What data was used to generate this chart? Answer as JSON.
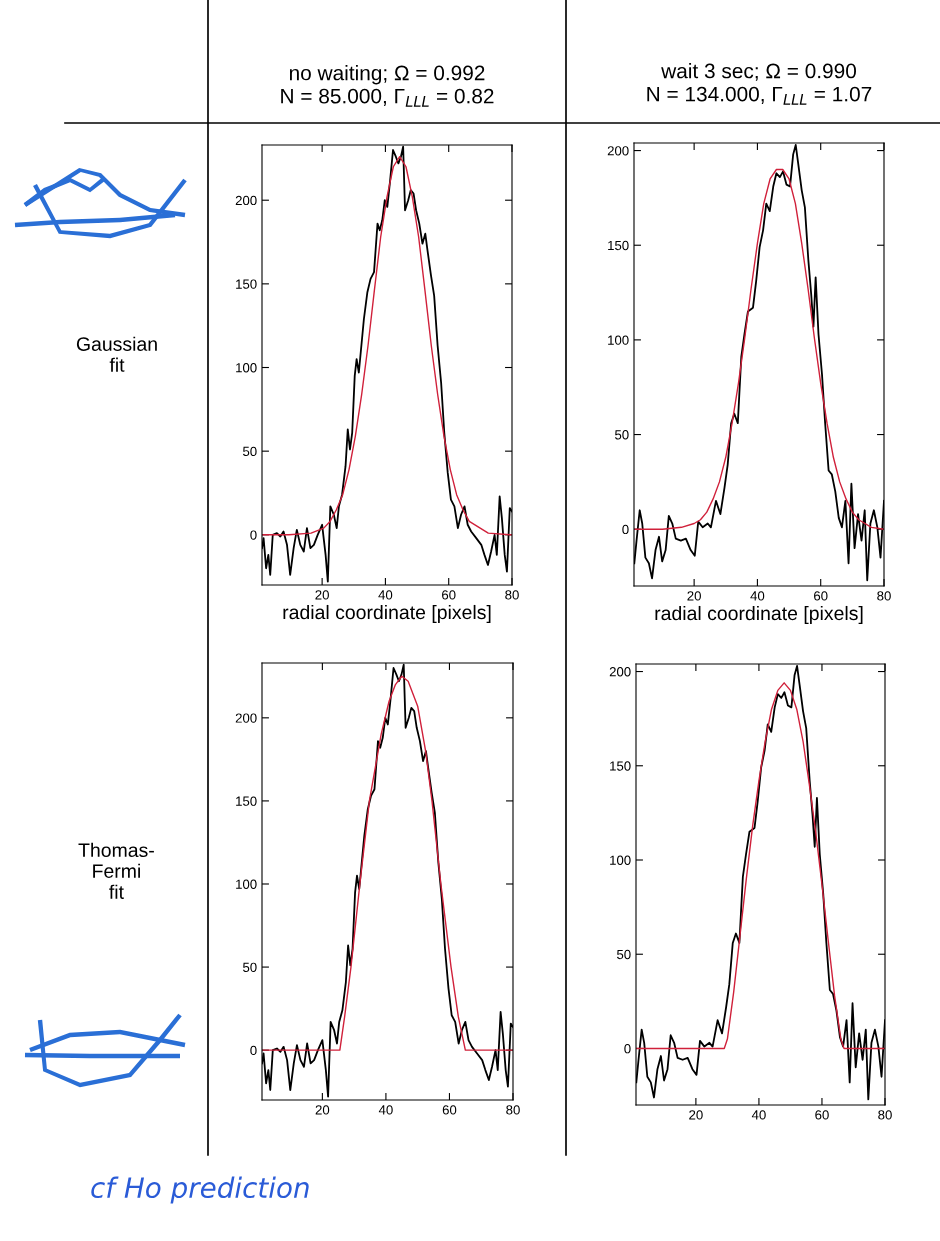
{
  "chart_data": [
    {
      "type": "line",
      "title": "no waiting; Ω = 0.992\nN = 85.000, Γ$_{LLL}$ = 0.82",
      "xlabel": "radial coordinate [pixels]",
      "ylabel": "Gaussian\nfit",
      "xlim": [
        1,
        80
      ],
      "ylim": [
        -30,
        233
      ],
      "xticks": [
        20,
        40,
        60,
        80
      ],
      "yticks": [
        0,
        50,
        100,
        150,
        200
      ],
      "series": [
        {
          "color": "#000000",
          "x": [
            1,
            1.5,
            2.3,
            3,
            3.6,
            4.4,
            5.7,
            6.8,
            7.8,
            8.9,
            9.9,
            11,
            12,
            13.1,
            14.2,
            15.2,
            16.3,
            17.4,
            18.6,
            20,
            21.1,
            21.8,
            22.6,
            23.7,
            24.6,
            25.3,
            26.3,
            27.4,
            28.1,
            28.8,
            29.5,
            30.3,
            30.9,
            31.6,
            32.4,
            33.2,
            34.3,
            35.3,
            36.4,
            37.5,
            38.2,
            39,
            39.8,
            40.6,
            41.5,
            42.4,
            43.3,
            44.1,
            44.9,
            45.6,
            46.2,
            47.2,
            48,
            48.9,
            49.7,
            50.7,
            51.7,
            52.6,
            53.3,
            54.4,
            55.4,
            56.5,
            57.6,
            58.6,
            59.7,
            60.7,
            61.8,
            62.9,
            63.9,
            65,
            66,
            67.1,
            68.7,
            70.3,
            71.3,
            72.4,
            73.4,
            74.5,
            75.2,
            76.1,
            76.8,
            77.7,
            78.4,
            79.3,
            80
          ],
          "values": [
            -8,
            -2,
            -20,
            -12,
            -24,
            0,
            1,
            -1,
            2,
            -6,
            -24,
            -8,
            3,
            -6,
            -10,
            4,
            -8,
            -6,
            0,
            6,
            -12,
            -28,
            17,
            12,
            4,
            17,
            24,
            41,
            63,
            51,
            61,
            95,
            105,
            97,
            113,
            129,
            145,
            153,
            157,
            186,
            182,
            188,
            200,
            196,
            212,
            230,
            226,
            222,
            226,
            232,
            194,
            200,
            206,
            204,
            194,
            186,
            174,
            180,
            170,
            155,
            143,
            113,
            91,
            61,
            37,
            21,
            17,
            4,
            12,
            17,
            6,
            2,
            -2,
            -6,
            -12,
            -18,
            -10,
            0,
            -12,
            23,
            10,
            -12,
            -22,
            16,
            14
          ]
        },
        {
          "color": "#d0203a",
          "x": [
            1,
            9.5,
            16.5,
            20.5,
            22.5,
            24.5,
            26.5,
            28.5,
            30.5,
            32.5,
            34.5,
            36.5,
            38.5,
            40.5,
            42.5,
            44.5,
            46.5,
            48.5,
            50.5,
            52.5,
            54.5,
            56.5,
            58.5,
            60.5,
            62.5,
            64.5,
            66.5,
            72.5,
            79.5,
            80
          ],
          "values": [
            0,
            0,
            1,
            4,
            8,
            15,
            24,
            39,
            59,
            84,
            113,
            146,
            178,
            202,
            220,
            226,
            220,
            202,
            178,
            146,
            113,
            84,
            59,
            39,
            24,
            15,
            8,
            1,
            0,
            0
          ]
        }
      ]
    },
    {
      "type": "line",
      "title": "wait 3 sec; Ω = 0.990\nN = 134.000, Γ$_{LLL}$ = 1.07",
      "xlabel": "radial coordinate [pixels]",
      "xlim": [
        1,
        80
      ],
      "ylim": [
        -30,
        204
      ],
      "xticks": [
        20,
        40,
        60,
        80
      ],
      "yticks": [
        0,
        50,
        100,
        150,
        200
      ],
      "series": [
        {
          "color": "#000000",
          "x": [
            1.1,
            1.8,
            2.8,
            3.6,
            4.6,
            5.7,
            6.7,
            7.8,
            8.9,
            9.9,
            11,
            12,
            13.1,
            14.2,
            15.8,
            17.4,
            18.9,
            20.2,
            21.3,
            22.7,
            24.3,
            25.3,
            26.9,
            28.3,
            29.6,
            30.6,
            31.7,
            32.7,
            33.8,
            34.9,
            35.9,
            37,
            38.6,
            39.6,
            40.7,
            41.8,
            42.8,
            43.9,
            45,
            46,
            47.1,
            48.1,
            49.2,
            50.3,
            51.3,
            52.1,
            52.9,
            54,
            55,
            56.1,
            57,
            57.7,
            58.4,
            59.3,
            60.4,
            61.4,
            62.5,
            63.5,
            64.6,
            65.7,
            66.7,
            67.8,
            68.8,
            69.7,
            70.7,
            71.8,
            72.9,
            73.9,
            74.7,
            75.7,
            76.8,
            77.9,
            78.9,
            80
          ],
          "values": [
            -18,
            -6,
            10,
            3,
            -15,
            -18,
            -26,
            -11,
            -4,
            -17,
            -11,
            7,
            3,
            -5,
            -6,
            -5,
            -11,
            -14,
            4,
            1,
            3,
            1,
            15,
            8,
            22,
            34,
            56,
            61,
            56,
            91,
            103,
            115,
            117,
            131,
            149,
            158,
            172,
            168,
            181,
            188,
            186,
            189,
            182,
            181,
            198,
            203,
            193,
            179,
            170,
            142,
            124,
            107,
            133,
            103,
            82,
            56,
            31,
            29,
            20,
            6,
            1,
            15,
            -18,
            24,
            -10,
            8,
            -6,
            10,
            -27,
            3,
            10,
            1,
            -15,
            15
          ]
        },
        {
          "color": "#d0203a",
          "x": [
            1,
            10,
            16,
            20,
            22,
            24,
            26,
            28,
            30,
            32,
            34,
            36,
            38,
            40,
            42,
            44,
            46,
            48,
            50,
            52,
            54,
            56,
            58,
            60,
            62,
            64,
            66,
            68,
            70,
            72,
            74,
            76,
            80
          ],
          "values": [
            0,
            0,
            1,
            3,
            5,
            9,
            16,
            25,
            38,
            56,
            77,
            101,
            127,
            151,
            172,
            185,
            190,
            190,
            185,
            172,
            151,
            127,
            101,
            77,
            56,
            38,
            25,
            16,
            9,
            5,
            3,
            1,
            0
          ]
        }
      ]
    },
    {
      "type": "line",
      "ylabel": "Thomas-\nFermi\nfit",
      "xlim": [
        1,
        80
      ],
      "ylim": [
        -30,
        233
      ],
      "xticks": [
        20,
        40,
        60,
        80
      ],
      "yticks": [
        0,
        50,
        100,
        150,
        200
      ],
      "annotations": [
        "cf Ho prediction"
      ],
      "series": [
        {
          "color": "#000000",
          "x": [
            1,
            1.5,
            2.3,
            3,
            3.6,
            4.4,
            5.7,
            6.8,
            7.8,
            8.9,
            9.9,
            11,
            12,
            13.1,
            14.2,
            15.2,
            16.3,
            17.4,
            18.6,
            20,
            21.1,
            21.8,
            22.6,
            23.7,
            24.6,
            25.3,
            26.3,
            27.4,
            28.1,
            28.8,
            29.5,
            30.3,
            30.9,
            31.6,
            32.4,
            33.2,
            34.3,
            35.3,
            36.4,
            37.5,
            38.2,
            39,
            39.8,
            40.6,
            41.5,
            42.4,
            43.3,
            44.1,
            44.9,
            45.6,
            46.2,
            47.2,
            48,
            48.9,
            49.7,
            50.7,
            51.7,
            52.6,
            53.3,
            54.4,
            55.4,
            56.5,
            57.6,
            58.6,
            59.7,
            60.7,
            61.8,
            62.9,
            63.9,
            65,
            66,
            67.1,
            68.7,
            70.3,
            71.3,
            72.4,
            73.4,
            74.5,
            75.2,
            76.1,
            76.8,
            77.7,
            78.4,
            79.3,
            80
          ],
          "values": [
            -8,
            -2,
            -20,
            -12,
            -24,
            0,
            1,
            -1,
            2,
            -6,
            -24,
            -8,
            3,
            -6,
            -10,
            4,
            -8,
            -6,
            0,
            6,
            -12,
            -28,
            17,
            12,
            4,
            17,
            24,
            41,
            63,
            51,
            61,
            95,
            105,
            97,
            113,
            129,
            145,
            153,
            157,
            186,
            182,
            188,
            200,
            196,
            212,
            230,
            226,
            222,
            226,
            232,
            194,
            200,
            206,
            204,
            194,
            186,
            174,
            180,
            170,
            155,
            143,
            113,
            91,
            61,
            37,
            21,
            17,
            4,
            12,
            17,
            6,
            2,
            -2,
            -6,
            -12,
            -18,
            -10,
            0,
            -12,
            23,
            10,
            -12,
            -22,
            16,
            14
          ]
        },
        {
          "color": "#d0203a",
          "x": [
            1,
            25.5,
            27,
            29,
            31.8,
            34.8,
            38.5,
            41,
            43,
            45,
            47,
            50,
            52.5,
            54.5,
            57.3,
            60.5,
            62.8,
            65,
            80
          ],
          "values": [
            0,
            0,
            20,
            50,
            100,
            150,
            190,
            210,
            220,
            225,
            222,
            207,
            180,
            150,
            100,
            50,
            20,
            0,
            0
          ]
        }
      ]
    },
    {
      "type": "line",
      "xlim": [
        1,
        80
      ],
      "ylim": [
        -30,
        204
      ],
      "xticks": [
        20,
        40,
        60,
        80
      ],
      "yticks": [
        0,
        50,
        100,
        150,
        200
      ],
      "series": [
        {
          "color": "#000000",
          "x": [
            1.1,
            1.8,
            2.8,
            3.6,
            4.6,
            5.7,
            6.7,
            7.8,
            8.9,
            9.9,
            11,
            12,
            13.1,
            14.2,
            15.8,
            17.4,
            18.9,
            20.2,
            21.3,
            22.7,
            24.3,
            25.3,
            26.9,
            28.3,
            29.6,
            30.6,
            31.7,
            32.7,
            33.8,
            34.9,
            35.9,
            37,
            38.6,
            39.6,
            40.7,
            41.8,
            42.8,
            43.9,
            45,
            46,
            47.1,
            48.1,
            49.2,
            50.3,
            51.3,
            52.1,
            52.9,
            54,
            55,
            56.1,
            57,
            57.7,
            58.4,
            59.3,
            60.4,
            61.4,
            62.5,
            63.5,
            64.6,
            65.7,
            66.7,
            67.8,
            68.8,
            69.7,
            70.7,
            71.8,
            72.9,
            73.9,
            74.7,
            75.7,
            76.8,
            77.9,
            78.9,
            80
          ],
          "values": [
            -18,
            -6,
            10,
            3,
            -15,
            -18,
            -26,
            -11,
            -4,
            -17,
            -11,
            7,
            3,
            -5,
            -6,
            -5,
            -11,
            -14,
            4,
            1,
            3,
            1,
            15,
            8,
            22,
            34,
            56,
            61,
            56,
            91,
            103,
            115,
            117,
            131,
            149,
            158,
            172,
            168,
            181,
            188,
            186,
            189,
            182,
            181,
            198,
            203,
            193,
            179,
            170,
            142,
            124,
            107,
            133,
            103,
            82,
            56,
            31,
            29,
            20,
            6,
            1,
            15,
            -18,
            24,
            -10,
            8,
            -6,
            10,
            -27,
            3,
            10,
            1,
            -15,
            15
          ]
        },
        {
          "color": "#d0203a",
          "x": [
            1,
            29,
            30,
            32,
            34,
            36,
            38,
            40,
            42,
            44,
            46,
            48,
            50,
            52,
            54,
            56,
            58,
            60,
            62,
            64,
            66,
            67,
            80
          ],
          "values": [
            0,
            0,
            5,
            30,
            60,
            90,
            118,
            142,
            163,
            180,
            190,
            194,
            190,
            180,
            163,
            140,
            115,
            87,
            57,
            28,
            5,
            0,
            0
          ]
        }
      ]
    }
  ]
}
